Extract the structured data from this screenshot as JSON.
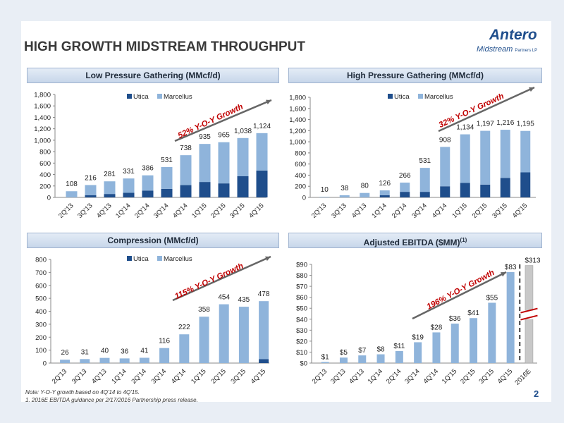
{
  "title": "HIGH GROWTH MIDSTREAM THROUGHPUT",
  "logo": {
    "name": "Antero",
    "sub": "Midstream",
    "sub_small": "Partners LP"
  },
  "colors": {
    "utica": "#1f4e8c",
    "marcellus": "#8fb4db",
    "estimate": "#c8c8c8",
    "growth_text": "#c00000"
  },
  "footnotes": [
    "Note: Y-O-Y growth based on 4Q'14 to 4Q'15.",
    "1.  2016E EBITDA guidance per 2/17/2016 Partnership press release."
  ],
  "page_number": "2",
  "chart_data": [
    {
      "id": "lp",
      "type": "bar",
      "title": "Low Pressure Gathering (MMcf/d)",
      "categories": [
        "2Q'13",
        "3Q'13",
        "4Q'13",
        "1Q'14",
        "2Q'14",
        "3Q'14",
        "4Q'14",
        "1Q'15",
        "2Q'15",
        "3Q'15",
        "4Q'15"
      ],
      "series": [
        {
          "name": "Utica",
          "values": [
            0,
            40,
            60,
            80,
            120,
            150,
            215,
            270,
            245,
            370,
            470
          ]
        },
        {
          "name": "Marcellus",
          "values": [
            108,
            176,
            221,
            251,
            266,
            381,
            523,
            665,
            720,
            668,
            654
          ]
        }
      ],
      "totals": [
        "108",
        "216",
        "281",
        "331",
        "386",
        "531",
        "738",
        "935",
        "965",
        "1,038",
        "1,124"
      ],
      "ylim": [
        0,
        1800
      ],
      "yticks": [
        0,
        200,
        400,
        600,
        800,
        1000,
        1200,
        1400,
        1600,
        1800
      ],
      "ytick_labels": [
        "0",
        "200",
        "400",
        "600",
        "800",
        "1,000",
        "1,200",
        "1,400",
        "1,600",
        "1,800"
      ],
      "growth": "52% Y-O-Y Growth",
      "legend": "top"
    },
    {
      "id": "hp",
      "type": "bar",
      "title": "High Pressure Gathering (MMcf/d)",
      "categories": [
        "2Q'13",
        "3Q'13",
        "4Q'13",
        "1Q'14",
        "2Q'14",
        "3Q'14",
        "4Q'14",
        "1Q'15",
        "2Q'15",
        "3Q'15",
        "4Q'15"
      ],
      "series": [
        {
          "name": "Utica",
          "values": [
            0,
            0,
            0,
            40,
            100,
            100,
            200,
            260,
            230,
            350,
            450
          ]
        },
        {
          "name": "Marcellus",
          "values": [
            10,
            38,
            80,
            86,
            166,
            431,
            708,
            874,
            967,
            866,
            745
          ]
        }
      ],
      "totals": [
        "10",
        "38",
        "80",
        "126",
        "266",
        "531",
        "908",
        "1,134",
        "1,197",
        "1,216",
        "1,195"
      ],
      "ylim": [
        0,
        1800
      ],
      "yticks": [
        0,
        200,
        400,
        600,
        800,
        1000,
        1200,
        1400,
        1600,
        1800
      ],
      "ytick_labels": [
        "0",
        "200",
        "400",
        "600",
        "800",
        "1,000",
        "1,200",
        "1,400",
        "1,600",
        "1,800"
      ],
      "growth": "32% Y-O-Y Growth",
      "legend": "top"
    },
    {
      "id": "comp",
      "type": "bar",
      "title": "Compression (MMcf/d)",
      "categories": [
        "2Q'13",
        "3Q'13",
        "4Q'13",
        "1Q'14",
        "2Q'14",
        "3Q'14",
        "4Q'14",
        "1Q'15",
        "2Q'15",
        "3Q'15",
        "4Q'15"
      ],
      "series": [
        {
          "name": "Utica",
          "values": [
            0,
            0,
            0,
            0,
            0,
            0,
            0,
            0,
            0,
            0,
            30
          ]
        },
        {
          "name": "Marcellus",
          "values": [
            26,
            31,
            40,
            36,
            41,
            116,
            222,
            358,
            454,
            435,
            448
          ]
        }
      ],
      "totals": [
        "26",
        "31",
        "40",
        "36",
        "41",
        "116",
        "222",
        "358",
        "454",
        "435",
        "478"
      ],
      "ylim": [
        0,
        800
      ],
      "yticks": [
        0,
        100,
        200,
        300,
        400,
        500,
        600,
        700,
        800
      ],
      "ytick_labels": [
        "0",
        "100",
        "200",
        "300",
        "400",
        "500",
        "600",
        "700",
        "800"
      ],
      "growth": "115% Y-O-Y Growth",
      "legend": "top"
    },
    {
      "id": "ebitda",
      "type": "bar",
      "title": "Adjusted EBITDA ($MM)",
      "title_sup": "(1)",
      "categories": [
        "2Q'13",
        "3Q'13",
        "4Q'13",
        "1Q'14",
        "2Q'14",
        "3Q'14",
        "4Q'14",
        "1Q'15",
        "2Q'15",
        "3Q'15",
        "4Q'15",
        "2016E"
      ],
      "series": [
        {
          "name": "Adjusted EBITDA",
          "values": [
            1,
            5,
            7,
            8,
            11,
            19,
            28,
            36,
            41,
            55,
            83,
            89
          ]
        }
      ],
      "totals": [
        "$1",
        "$5",
        "$7",
        "$8",
        "$11",
        "$19",
        "$28",
        "$36",
        "$41",
        "$55",
        "$83",
        "$313"
      ],
      "ylim": [
        0,
        90
      ],
      "yticks": [
        0,
        10,
        20,
        30,
        40,
        50,
        60,
        70,
        80,
        90
      ],
      "ytick_labels": [
        "$0",
        "$10",
        "$20",
        "$30",
        "$40",
        "$50",
        "$60",
        "$70",
        "$80",
        "$90"
      ],
      "growth": "196% Y-O-Y Growth",
      "axis_break": true
    }
  ]
}
